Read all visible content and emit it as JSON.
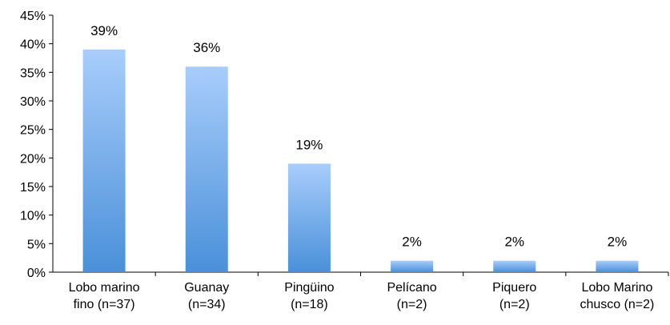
{
  "chart_data": {
    "type": "bar",
    "categories": [
      [
        "Lobo marino",
        "fino (n=37)"
      ],
      [
        "Guanay",
        "(n=34)"
      ],
      [
        "Pingüino",
        "(n=18)"
      ],
      [
        "Pelícano",
        "(n=2)"
      ],
      [
        "Piquero",
        "(n=2)"
      ],
      [
        "Lobo Marino",
        "chusco (n=2)"
      ]
    ],
    "values": [
      39,
      36,
      19,
      2,
      2,
      2
    ],
    "data_labels": [
      "39%",
      "36%",
      "19%",
      "2%",
      "2%",
      "2%"
    ],
    "ytick_labels": [
      "0%",
      "5%",
      "10%",
      "15%",
      "20%",
      "25%",
      "30%",
      "35%",
      "40%",
      "45%"
    ],
    "ylim": [
      0,
      45
    ],
    "ystep": 5,
    "title": "",
    "xlabel": "",
    "ylabel": "",
    "grid": false,
    "legend": "none",
    "colors": {
      "bar_top": "#a8cdfb",
      "bar_bottom": "#4a90d9",
      "axis": "#000000"
    }
  }
}
